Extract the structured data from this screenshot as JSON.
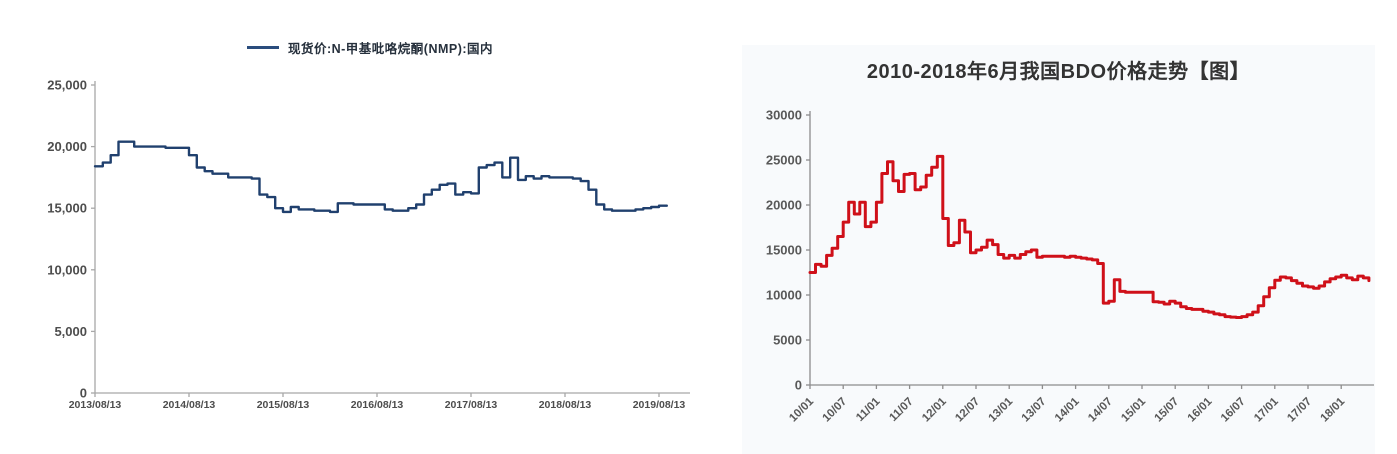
{
  "page": {
    "background": "#ffffff",
    "panel_background": "#f8fafc"
  },
  "chart_data": [
    {
      "type": "line",
      "legend": "现货价:N-甲基吡咯烷酮(NMP):国内",
      "line_color": "#20406e",
      "interpolation": "step",
      "x_start": "2013/08",
      "x_freq": "month",
      "x_tick_labels": [
        "2013/08/13",
        "2014/08/13",
        "2015/08/13",
        "2016/08/13",
        "2017/08/13",
        "2018/08/13",
        "2019/08/13"
      ],
      "months_per_tick": 12,
      "ylim": [
        0,
        25000
      ],
      "y_ticks": [
        0,
        5000,
        10000,
        15000,
        20000,
        25000
      ],
      "y_tick_labels": [
        "0",
        "5,000",
        "10,000",
        "15,000",
        "20,000",
        "25,000"
      ],
      "grid": false,
      "legend_position": "top-center",
      "values": [
        18400,
        18700,
        19300,
        20400,
        20400,
        20000,
        20000,
        20000,
        20000,
        19900,
        19900,
        19900,
        19300,
        18300,
        18000,
        17800,
        17800,
        17500,
        17500,
        17500,
        17400,
        16100,
        15900,
        15000,
        14700,
        15100,
        14900,
        14900,
        14800,
        14800,
        14700,
        15400,
        15400,
        15300,
        15300,
        15300,
        15300,
        14900,
        14800,
        14800,
        15000,
        15300,
        16100,
        16500,
        16900,
        17000,
        16100,
        16300,
        16200,
        18300,
        18500,
        18700,
        17500,
        19100,
        17300,
        17600,
        17400,
        17600,
        17500,
        17500,
        17500,
        17400,
        17200,
        16500,
        15300,
        14900,
        14800,
        14800,
        14800,
        14900,
        15000,
        15100,
        15200,
        15200
      ]
    },
    {
      "type": "line",
      "title": "2010-2018年6月我国BDO价格走势【图】",
      "title_color": "#333333",
      "line_color": "#cf1019",
      "interpolation": "step",
      "x_start": "2010/01",
      "x_freq": "month",
      "x_tick_labels": [
        "10/01",
        "10/07",
        "11/01",
        "11/07",
        "12/01",
        "12/07",
        "13/01",
        "13/07",
        "14/01",
        "14/07",
        "15/01",
        "15/07",
        "16/01",
        "16/07",
        "17/01",
        "17/07",
        "18/01"
      ],
      "months_per_tick": 6,
      "ylim": [
        0,
        30000
      ],
      "y_ticks": [
        0,
        5000,
        10000,
        15000,
        20000,
        25000,
        30000
      ],
      "y_tick_labels": [
        "0",
        "5000",
        "10000",
        "15000",
        "20000",
        "25000",
        "30000"
      ],
      "grid": false,
      "legend_position": "none",
      "values": [
        12500,
        13400,
        13200,
        14400,
        15200,
        16500,
        18100,
        20300,
        19000,
        20300,
        17600,
        18100,
        20300,
        23500,
        24800,
        22700,
        21500,
        23400,
        23500,
        21700,
        22000,
        23300,
        24200,
        25400,
        18500,
        15500,
        15800,
        18300,
        17000,
        14700,
        15000,
        15300,
        16100,
        15600,
        14500,
        14100,
        14400,
        14100,
        14500,
        14800,
        15000,
        14200,
        14300,
        14300,
        14300,
        14300,
        14200,
        14300,
        14200,
        14100,
        14000,
        13900,
        13500,
        9100,
        9300,
        11700,
        10400,
        10300,
        10300,
        10300,
        10300,
        10300,
        9250,
        9200,
        9000,
        9300,
        9100,
        8700,
        8500,
        8400,
        8400,
        8200,
        8100,
        7900,
        7800,
        7600,
        7550,
        7500,
        7600,
        7800,
        8100,
        8800,
        9800,
        10800,
        11650,
        12000,
        11900,
        11600,
        11300,
        11000,
        10900,
        10750,
        11000,
        11450,
        11800,
        12000,
        12200,
        11900,
        11700,
        12100,
        11900,
        11600
      ]
    }
  ]
}
